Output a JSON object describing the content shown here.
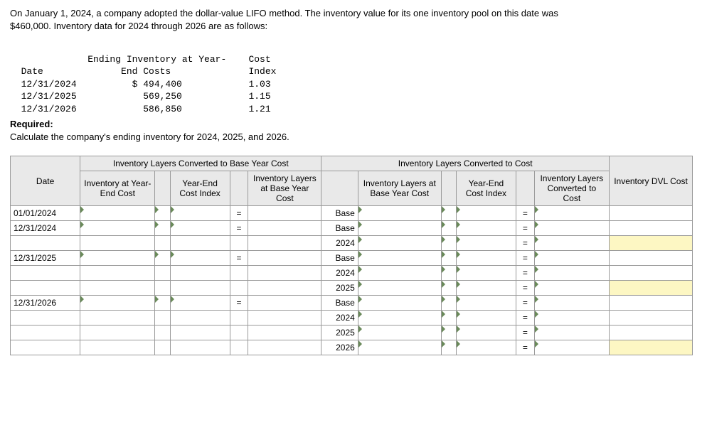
{
  "prompt": {
    "line1": "On January 1, 2024, a company adopted the dollar-value LIFO method. The inventory value for its one inventory pool on this date was",
    "line2": "$460,000. Inventory data for 2024 through 2026 are as follows:"
  },
  "data_table": {
    "header_l1a": "              Ending Inventory at Year-    Cost",
    "header_l1b": "  Date              End Costs              Index",
    "rows": [
      "  12/31/2024          $ 494,400            1.03",
      "  12/31/2025            569,250            1.15",
      "  12/31/2026            586,850            1.21"
    ]
  },
  "required": {
    "label": "Required:",
    "text": "Calculate the company's ending inventory for 2024, 2025, and 2026."
  },
  "table": {
    "sections": {
      "left": "Inventory Layers Converted to Base Year Cost",
      "right": "Inventory Layers Converted to Cost",
      "dvl": "Inventory DVL Cost"
    },
    "cols": {
      "date": "Date",
      "inv_ye": "Inventory at Year-End Cost",
      "idx": "Year-End Cost Index",
      "base": "Inventory Layers at Base Year Cost",
      "lbase": "Inventory Layers at Base Year Cost",
      "idx2": "Year-End Cost Index",
      "conv": "Inventory Layers Converted to Cost"
    },
    "eq": "=",
    "dates": {
      "r1": "01/01/2024",
      "r2": "12/31/2024",
      "r3": "12/31/2025",
      "r4": "12/31/2026"
    },
    "layers": {
      "base": "Base",
      "y24": "2024",
      "y25": "2025",
      "y26": "2026"
    }
  }
}
